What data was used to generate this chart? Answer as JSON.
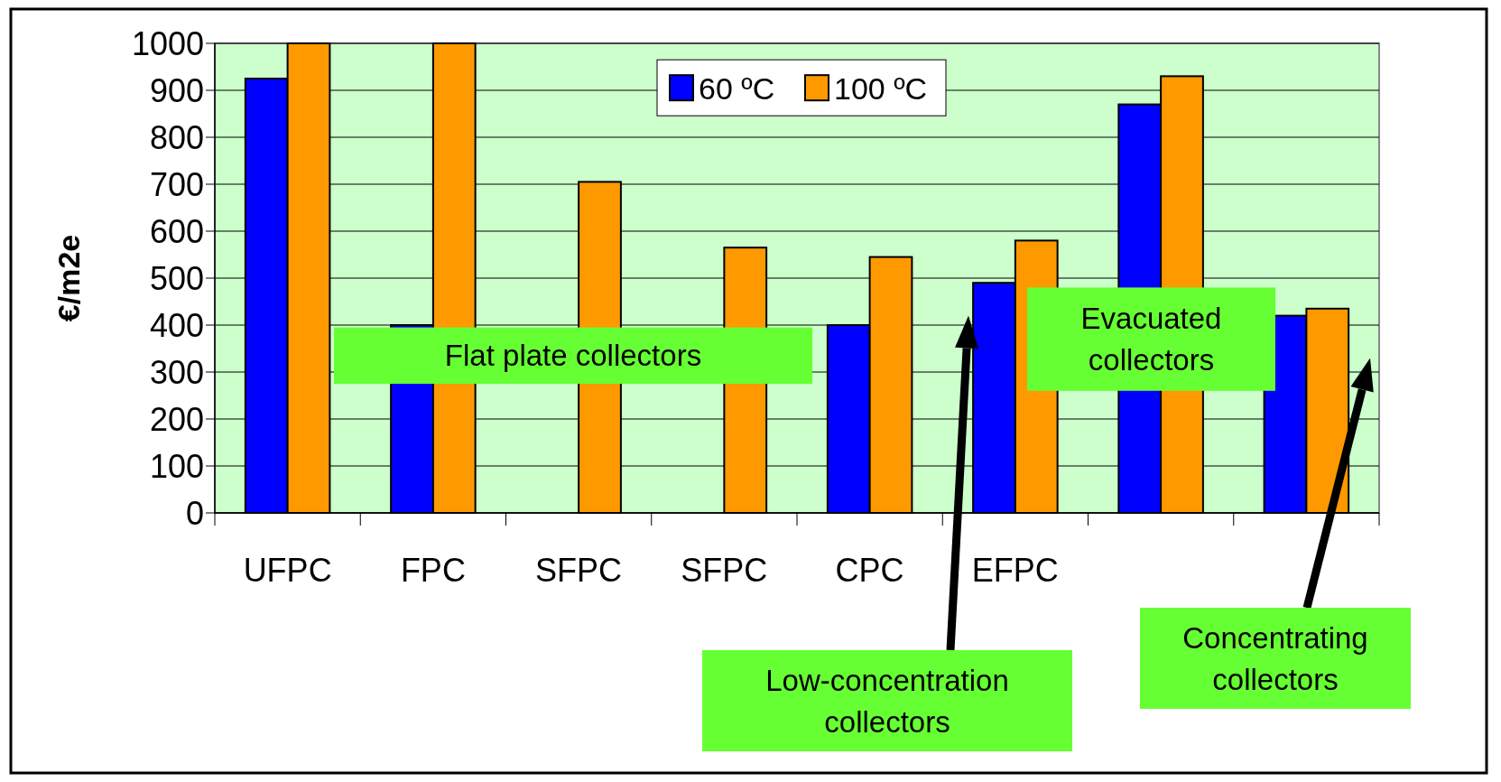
{
  "chart_data": {
    "type": "bar",
    "ylabel": "€/m2e",
    "categories": [
      "UFPC",
      "FPC",
      "SFPC",
      "SFPC",
      "CPC",
      "EFPC",
      null,
      null
    ],
    "series": [
      {
        "name": "60 ºC",
        "color": "#0000ff",
        "values": [
          925,
          400,
          null,
          null,
          400,
          490,
          870,
          420
        ]
      },
      {
        "name": "100 ºC",
        "color": "#ff9900",
        "values": [
          1000,
          1000,
          705,
          565,
          545,
          580,
          930,
          435
        ]
      }
    ],
    "ylim": [
      0,
      1000
    ],
    "yticks": [
      0,
      100,
      200,
      300,
      400,
      500,
      600,
      700,
      800,
      900,
      1000
    ],
    "grid": "y",
    "legend": "top",
    "annotations": [
      "Flat plate collectors",
      "Low-concentration collectors",
      "Evacuated collectors",
      "Concentrating collectors"
    ]
  }
}
